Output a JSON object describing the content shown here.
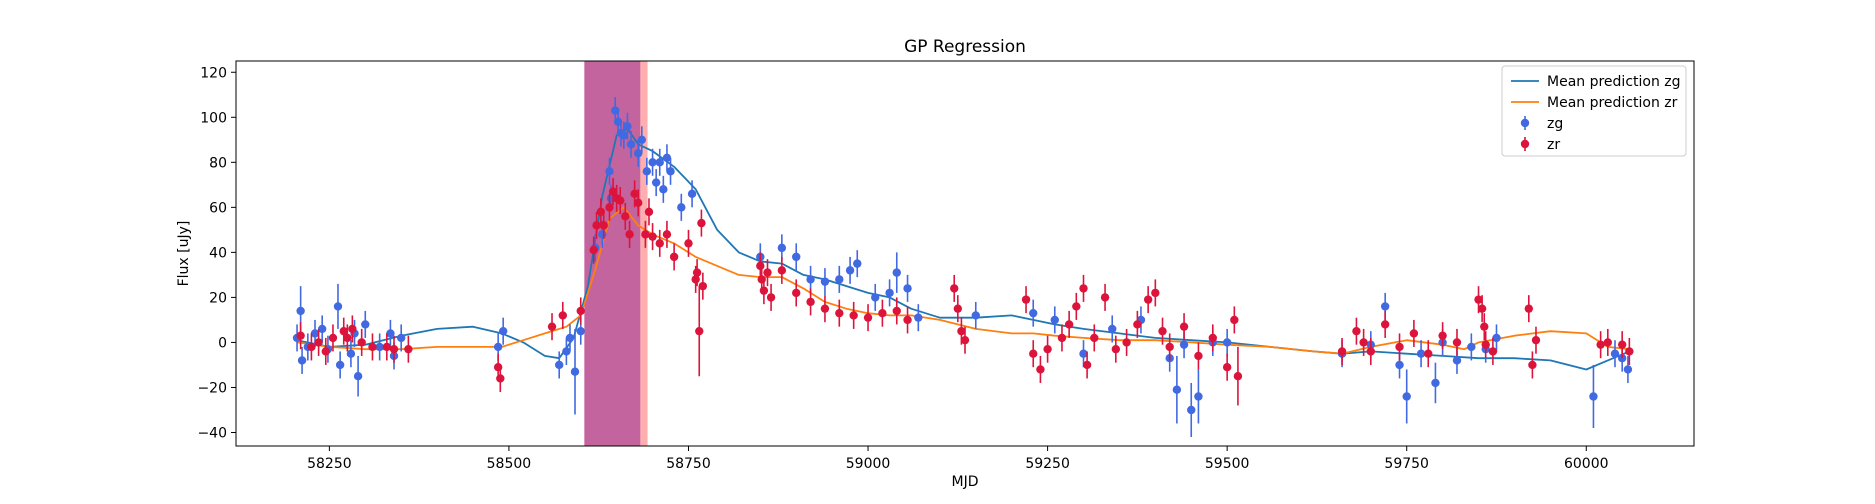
{
  "chart_data": {
    "type": "scatter",
    "title": "GP Regression",
    "xlabel": "MJD",
    "ylabel": "Flux [uJy]",
    "xlim": [
      58120,
      60150
    ],
    "ylim": [
      -46,
      125
    ],
    "xticks": [
      58250,
      58500,
      58750,
      59000,
      59250,
      59500,
      59750,
      60000
    ],
    "yticks": [
      -40,
      -20,
      0,
      20,
      40,
      60,
      80,
      100,
      120
    ],
    "grid": false,
    "legend_position": "top-right",
    "shaded_regions": [
      {
        "x0": 58605,
        "x1": 58683,
        "color": "#b0307f",
        "opacity": 0.75
      },
      {
        "x0": 58683,
        "x1": 58693,
        "color": "#ff6b6b",
        "opacity": 0.55
      }
    ],
    "series": [
      {
        "name": "Mean prediction zg",
        "kind": "line",
        "color": "#1f77b4",
        "x": [
          58205,
          58250,
          58300,
          58350,
          58400,
          58450,
          58490,
          58520,
          58550,
          58570,
          58590,
          58610,
          58630,
          58650,
          58665,
          58680,
          58700,
          58730,
          58760,
          58790,
          58820,
          58850,
          58880,
          58910,
          58940,
          58970,
          59000,
          59030,
          59060,
          59100,
          59150,
          59200,
          59230,
          59260,
          59300,
          59350,
          59400,
          59450,
          59500,
          59560,
          59620,
          59660,
          59700,
          59750,
          59800,
          59850,
          59900,
          59950,
          60000,
          60030,
          60060
        ],
        "y": [
          1,
          -2,
          -1,
          3,
          6,
          7,
          4,
          0,
          -6,
          -7,
          2,
          25,
          65,
          92,
          95,
          88,
          85,
          78,
          68,
          50,
          40,
          36,
          35,
          30,
          28,
          25,
          22,
          20,
          15,
          11,
          11,
          12,
          10,
          8,
          6,
          4,
          2,
          1,
          0,
          -2,
          -4,
          -5,
          -4,
          -5,
          -6,
          -7,
          -7,
          -8,
          -12,
          -8,
          -4
        ]
      },
      {
        "name": "Mean prediction zr",
        "kind": "line",
        "color": "#ff7f0e",
        "x": [
          58205,
          58250,
          58300,
          58350,
          58400,
          58450,
          58490,
          58520,
          58550,
          58580,
          58600,
          58620,
          58640,
          58660,
          58680,
          58700,
          58730,
          58760,
          58790,
          58820,
          58850,
          58880,
          58910,
          58940,
          58970,
          59000,
          59030,
          59060,
          59100,
          59150,
          59200,
          59230,
          59260,
          59300,
          59350,
          59400,
          59450,
          59500,
          59560,
          59620,
          59660,
          59700,
          59750,
          59800,
          59830,
          59850,
          59900,
          59950,
          60000,
          60030,
          60060
        ],
        "y": [
          0,
          -2,
          -3,
          -3,
          -2,
          -2,
          -2,
          1,
          4,
          7,
          12,
          32,
          55,
          60,
          52,
          48,
          44,
          38,
          34,
          30,
          29,
          29,
          24,
          18,
          15,
          13,
          12,
          12,
          10,
          6,
          4,
          4,
          3,
          2,
          1,
          1,
          0,
          -1,
          -2,
          -4,
          -5,
          -2,
          1,
          -1,
          -3,
          0,
          3,
          5,
          4,
          -2,
          -3
        ]
      },
      {
        "name": "zg",
        "kind": "errorbar",
        "color": "#4169e1",
        "points": [
          [
            58205,
            2,
            6
          ],
          [
            58210,
            14,
            11
          ],
          [
            58212,
            -8,
            6
          ],
          [
            58220,
            -2,
            6
          ],
          [
            58230,
            4,
            6
          ],
          [
            58240,
            6,
            6
          ],
          [
            58248,
            -3,
            6
          ],
          [
            58262,
            16,
            10
          ],
          [
            58265,
            -10,
            6
          ],
          [
            58280,
            -5,
            6
          ],
          [
            58285,
            4,
            6
          ],
          [
            58290,
            -15,
            9
          ],
          [
            58300,
            8,
            6
          ],
          [
            58320,
            -2,
            6
          ],
          [
            58335,
            4,
            6
          ],
          [
            58340,
            -6,
            6
          ],
          [
            58350,
            2,
            6
          ],
          [
            58485,
            -2,
            6
          ],
          [
            58492,
            5,
            6
          ],
          [
            58570,
            -10,
            6
          ],
          [
            58580,
            -4,
            6
          ],
          [
            58585,
            2,
            6
          ],
          [
            58592,
            -13,
            19
          ],
          [
            58600,
            5,
            6
          ],
          [
            58620,
            42,
            6
          ],
          [
            58630,
            48,
            6
          ],
          [
            58640,
            76,
            6
          ],
          [
            58642,
            64,
            6
          ],
          [
            58648,
            103,
            6
          ],
          [
            58652,
            98,
            6
          ],
          [
            58656,
            93,
            6
          ],
          [
            58660,
            92,
            6
          ],
          [
            58665,
            96,
            6
          ],
          [
            58670,
            88,
            6
          ],
          [
            58680,
            84,
            6
          ],
          [
            58685,
            90,
            6
          ],
          [
            58692,
            76,
            6
          ],
          [
            58700,
            80,
            6
          ],
          [
            58705,
            71,
            6
          ],
          [
            58710,
            80,
            6
          ],
          [
            58715,
            68,
            6
          ],
          [
            58720,
            82,
            6
          ],
          [
            58725,
            76,
            6
          ],
          [
            58740,
            60,
            6
          ],
          [
            58755,
            66,
            6
          ],
          [
            58850,
            38,
            6
          ],
          [
            58880,
            42,
            6
          ],
          [
            58900,
            38,
            6
          ],
          [
            58920,
            28,
            6
          ],
          [
            58940,
            27,
            6
          ],
          [
            58960,
            28,
            6
          ],
          [
            58975,
            32,
            6
          ],
          [
            58985,
            35,
            6
          ],
          [
            59010,
            20,
            6
          ],
          [
            59030,
            22,
            6
          ],
          [
            59040,
            31,
            9
          ],
          [
            59055,
            24,
            6
          ],
          [
            59070,
            11,
            6
          ],
          [
            59150,
            12,
            6
          ],
          [
            59230,
            13,
            6
          ],
          [
            59260,
            10,
            6
          ],
          [
            59300,
            -5,
            6
          ],
          [
            59340,
            6,
            6
          ],
          [
            59380,
            10,
            6
          ],
          [
            59420,
            -7,
            6
          ],
          [
            59430,
            -21,
            15
          ],
          [
            59440,
            -1,
            6
          ],
          [
            59450,
            -30,
            12
          ],
          [
            59460,
            -24,
            12
          ],
          [
            59480,
            0,
            6
          ],
          [
            59500,
            0,
            6
          ],
          [
            59660,
            -5,
            6
          ],
          [
            59700,
            -1,
            6
          ],
          [
            59720,
            16,
            6
          ],
          [
            59740,
            -10,
            6
          ],
          [
            59750,
            -24,
            12
          ],
          [
            59770,
            -5,
            6
          ],
          [
            59790,
            -18,
            9
          ],
          [
            59800,
            0,
            6
          ],
          [
            59820,
            -8,
            6
          ],
          [
            59840,
            -2,
            6
          ],
          [
            59860,
            -3,
            6
          ],
          [
            59875,
            2,
            6
          ],
          [
            60010,
            -24,
            14
          ],
          [
            60040,
            -5,
            6
          ],
          [
            60050,
            -7,
            6
          ],
          [
            60058,
            -12,
            6
          ]
        ]
      },
      {
        "name": "zr",
        "kind": "errorbar",
        "color": "#dc143c",
        "points": [
          [
            58210,
            3,
            6
          ],
          [
            58225,
            -2,
            6
          ],
          [
            58235,
            0,
            6
          ],
          [
            58245,
            -4,
            6
          ],
          [
            58255,
            2,
            6
          ],
          [
            58270,
            5,
            6
          ],
          [
            58275,
            2,
            6
          ],
          [
            58282,
            6,
            6
          ],
          [
            58295,
            0,
            6
          ],
          [
            58310,
            -2,
            6
          ],
          [
            58330,
            -2,
            6
          ],
          [
            58340,
            -3,
            6
          ],
          [
            58360,
            -3,
            6
          ],
          [
            58485,
            -11,
            6
          ],
          [
            58488,
            -16,
            6
          ],
          [
            58560,
            7,
            6
          ],
          [
            58575,
            12,
            6
          ],
          [
            58600,
            14,
            6
          ],
          [
            58618,
            41,
            6
          ],
          [
            58622,
            52,
            6
          ],
          [
            58628,
            58,
            6
          ],
          [
            58632,
            52,
            6
          ],
          [
            58640,
            60,
            6
          ],
          [
            58645,
            67,
            6
          ],
          [
            58650,
            64,
            6
          ],
          [
            58655,
            63,
            6
          ],
          [
            58662,
            56,
            6
          ],
          [
            58668,
            48,
            6
          ],
          [
            58675,
            66,
            6
          ],
          [
            58680,
            62,
            6
          ],
          [
            58690,
            48,
            6
          ],
          [
            58695,
            58,
            6
          ],
          [
            58700,
            47,
            6
          ],
          [
            58710,
            44,
            6
          ],
          [
            58720,
            48,
            6
          ],
          [
            58730,
            38,
            6
          ],
          [
            58750,
            44,
            6
          ],
          [
            58760,
            28,
            6
          ],
          [
            58762,
            31,
            6
          ],
          [
            58765,
            5,
            20
          ],
          [
            58768,
            53,
            6
          ],
          [
            58770,
            25,
            6
          ],
          [
            58850,
            34,
            6
          ],
          [
            58852,
            28,
            6
          ],
          [
            58855,
            23,
            6
          ],
          [
            58860,
            31,
            6
          ],
          [
            58865,
            20,
            6
          ],
          [
            58880,
            32,
            6
          ],
          [
            58900,
            22,
            6
          ],
          [
            58920,
            18,
            6
          ],
          [
            58940,
            15,
            6
          ],
          [
            58960,
            13,
            6
          ],
          [
            58980,
            12,
            6
          ],
          [
            59000,
            11,
            6
          ],
          [
            59020,
            13,
            6
          ],
          [
            59040,
            14,
            6
          ],
          [
            59055,
            10,
            6
          ],
          [
            59120,
            24,
            6
          ],
          [
            59125,
            15,
            6
          ],
          [
            59130,
            5,
            6
          ],
          [
            59135,
            1,
            6
          ],
          [
            59220,
            19,
            6
          ],
          [
            59230,
            -5,
            6
          ],
          [
            59240,
            -12,
            6
          ],
          [
            59250,
            -3,
            6
          ],
          [
            59270,
            2,
            6
          ],
          [
            59280,
            8,
            6
          ],
          [
            59290,
            16,
            6
          ],
          [
            59300,
            24,
            6
          ],
          [
            59305,
            -10,
            6
          ],
          [
            59315,
            2,
            6
          ],
          [
            59330,
            20,
            6
          ],
          [
            59345,
            -3,
            6
          ],
          [
            59360,
            0,
            6
          ],
          [
            59375,
            8,
            6
          ],
          [
            59390,
            19,
            6
          ],
          [
            59400,
            22,
            6
          ],
          [
            59410,
            5,
            6
          ],
          [
            59420,
            -2,
            6
          ],
          [
            59440,
            7,
            6
          ],
          [
            59460,
            -6,
            6
          ],
          [
            59480,
            2,
            6
          ],
          [
            59500,
            -11,
            6
          ],
          [
            59510,
            10,
            6
          ],
          [
            59515,
            -15,
            13
          ],
          [
            59660,
            -4,
            6
          ],
          [
            59680,
            5,
            6
          ],
          [
            59690,
            0,
            6
          ],
          [
            59700,
            -4,
            6
          ],
          [
            59720,
            8,
            6
          ],
          [
            59740,
            -2,
            6
          ],
          [
            59760,
            4,
            6
          ],
          [
            59780,
            -5,
            6
          ],
          [
            59800,
            3,
            6
          ],
          [
            59820,
            0,
            6
          ],
          [
            59850,
            19,
            6
          ],
          [
            59855,
            15,
            6
          ],
          [
            59858,
            7,
            6
          ],
          [
            59860,
            -1,
            6
          ],
          [
            59870,
            -4,
            6
          ],
          [
            59920,
            15,
            6
          ],
          [
            59925,
            -10,
            6
          ],
          [
            59930,
            1,
            6
          ],
          [
            60020,
            -1,
            6
          ],
          [
            60030,
            0,
            6
          ],
          [
            60050,
            -1,
            6
          ],
          [
            60060,
            -4,
            6
          ]
        ]
      }
    ]
  }
}
